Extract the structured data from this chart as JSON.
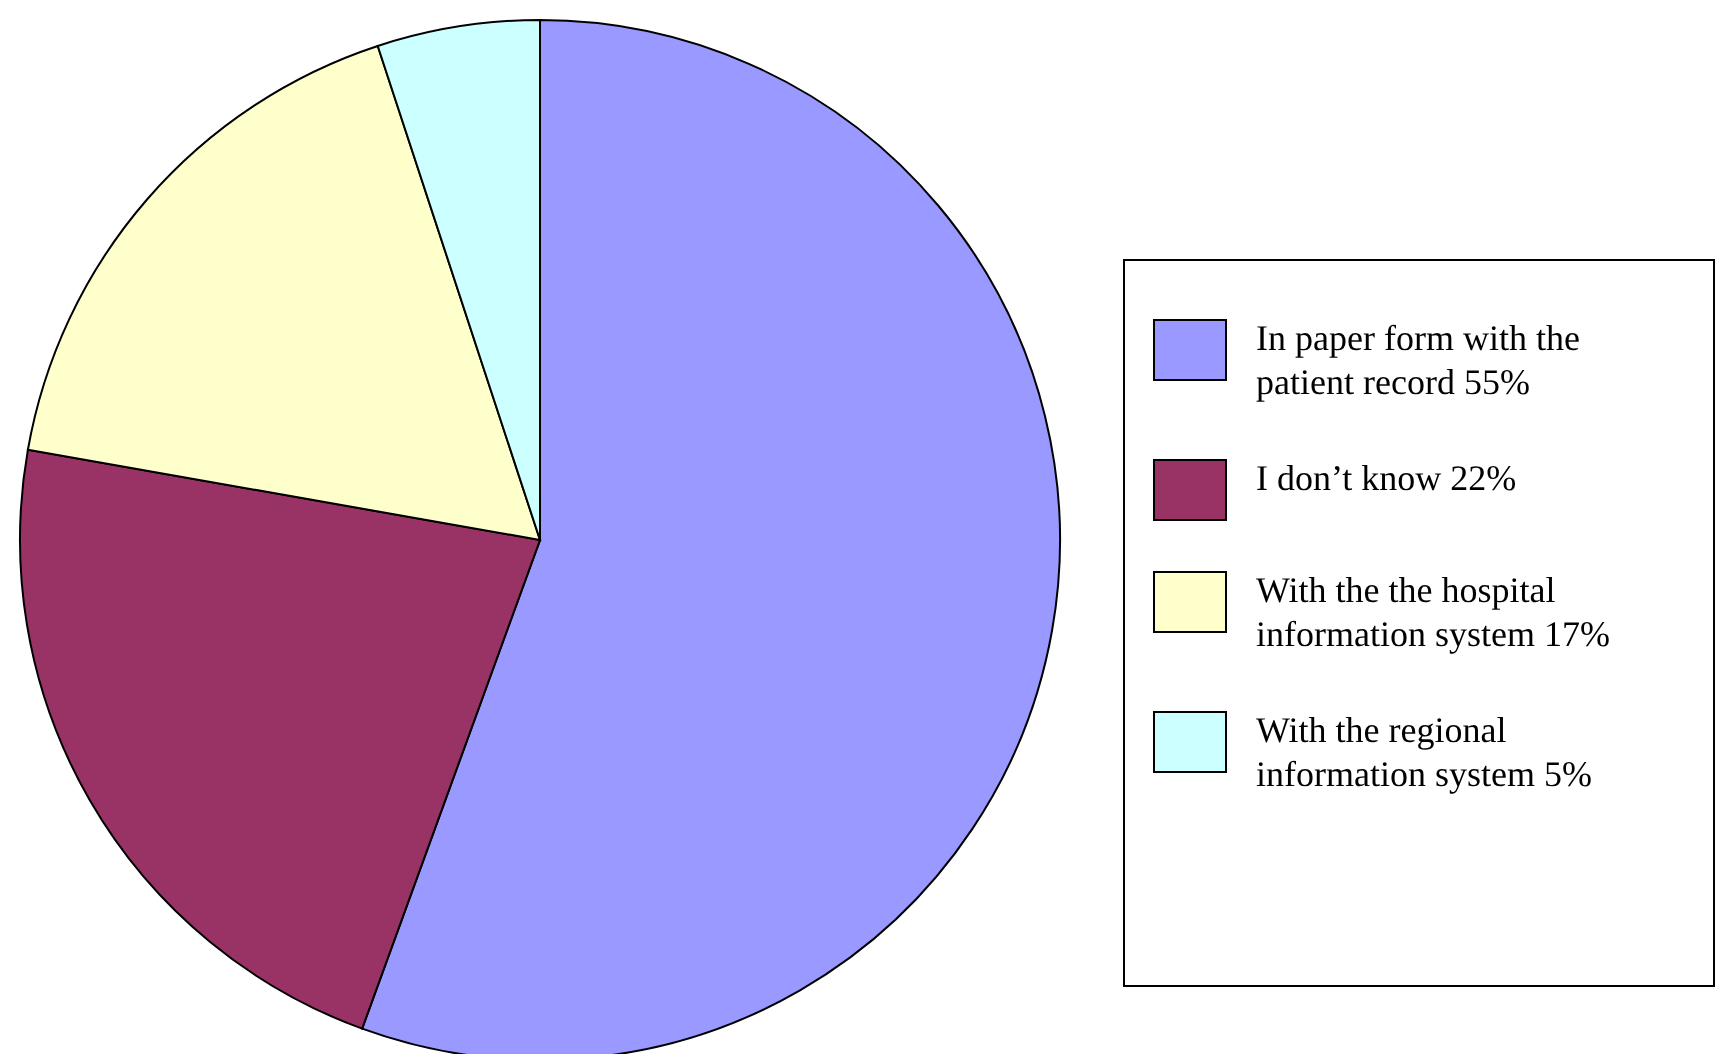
{
  "chart_data": {
    "type": "pie",
    "categories": [
      "In paper form with the patient record",
      "I don’t know",
      "With the the hospital information system",
      "With the regional information system"
    ],
    "values": [
      55,
      22,
      17,
      5
    ],
    "value_labels": [
      "55%",
      "22%",
      "17%",
      "5%"
    ],
    "colors": [
      "#9999ff",
      "#993366",
      "#ffffcc",
      "#ccffff"
    ],
    "legend": "right"
  }
}
